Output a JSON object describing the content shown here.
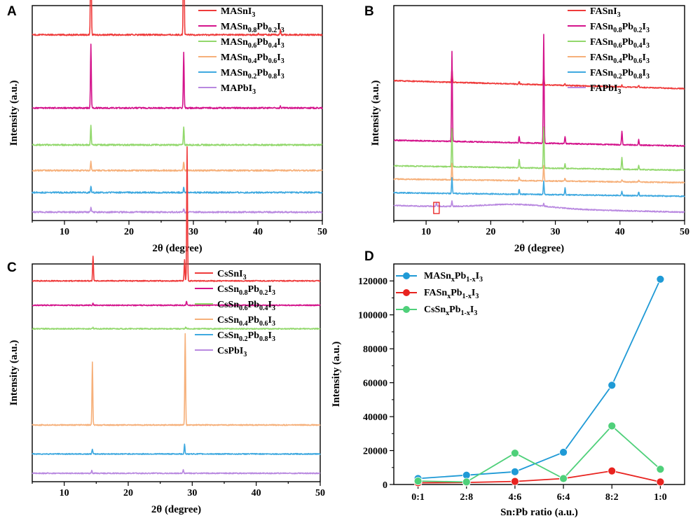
{
  "chart_data": [
    {
      "panel": "A",
      "type": "line",
      "title": "",
      "xlabel": "2θ (degree)",
      "ylabel": "Intensity (a.u.)",
      "xlim": [
        5,
        50
      ],
      "xticks": [
        "10",
        "20",
        "30",
        "40",
        "50"
      ],
      "grid": false,
      "legend": "top-right",
      "series": [
        {
          "name": "MASnI",
          "sub": "3",
          "color": "#ef3b3b",
          "baseline": 1.0,
          "peaks": [
            {
              "x": 14.1,
              "h": 20.8
            },
            {
              "x": 28.5,
              "h": 26.4
            },
            {
              "x": 40.1,
              "h": 0.3
            },
            {
              "x": 43.5,
              "h": 0.8
            }
          ]
        },
        {
          "name": "MASn",
          "sub": "0.8",
          "mid": "Pb",
          "sub2": "0.2",
          "end": "I",
          "sub3": "3",
          "color": "#d4148c",
          "baseline": 1.0,
          "peaks": [
            {
              "x": 14.1,
              "h": 10.6
            },
            {
              "x": 28.5,
              "h": 9.3
            },
            {
              "x": 43.5,
              "h": 0.3
            }
          ]
        },
        {
          "name": "MASn",
          "sub": "0.6",
          "mid": "Pb",
          "sub2": "0.4",
          "end": "I",
          "sub3": "3",
          "color": "#92d86c",
          "baseline": 1.0,
          "peaks": [
            {
              "x": 14.1,
              "h": 3.2
            },
            {
              "x": 28.5,
              "h": 3.1
            }
          ]
        },
        {
          "name": "MASn",
          "sub": "0.4",
          "mid": "Pb",
          "sub2": "0.6",
          "end": "I",
          "sub3": "3",
          "color": "#f6b07a",
          "baseline": 1.0,
          "peaks": [
            {
              "x": 14.1,
              "h": 1.5
            },
            {
              "x": 28.5,
              "h": 1.4
            }
          ]
        },
        {
          "name": "MASn",
          "sub": "0.2",
          "mid": "Pb",
          "sub2": "0.8",
          "end": "I",
          "sub3": "3",
          "color": "#3fa9e0",
          "baseline": 1.0,
          "peaks": [
            {
              "x": 14.1,
              "h": 1.0
            },
            {
              "x": 28.5,
              "h": 0.8
            }
          ]
        },
        {
          "name": "MAPbI",
          "sub": "3",
          "color": "#b989e0",
          "baseline": 1.0,
          "peaks": [
            {
              "x": 14.1,
              "h": 0.8
            },
            {
              "x": 28.5,
              "h": 0.6
            }
          ]
        }
      ],
      "offsets": [
        29.8,
        17.5,
        11.3,
        7.0,
        3.3,
        0.0
      ]
    },
    {
      "panel": "B",
      "type": "line",
      "title": "",
      "xlabel": "2θ (degree)",
      "ylabel": "Intensity (a.u.)",
      "xlim": [
        5,
        50
      ],
      "xticks": [
        "10",
        "20",
        "30",
        "40",
        "50"
      ],
      "grid": false,
      "legend": "top-right",
      "series": [
        {
          "name": "FASnI",
          "sub": "3",
          "color": "#ef3b3b",
          "baseline": 1.0,
          "peaks": [
            {
              "x": 14.0,
              "h": 3.1
            },
            {
              "x": 24.4,
              "h": 0.6
            },
            {
              "x": 28.2,
              "h": 2.6
            },
            {
              "x": 31.5,
              "h": 0.5
            },
            {
              "x": 40.3,
              "h": 0.4
            },
            {
              "x": 42.9,
              "h": 0.4
            }
          ]
        },
        {
          "name": "FASn",
          "sub": "0.8",
          "mid": "Pb",
          "sub2": "0.2",
          "end": "I",
          "sub3": "3",
          "color": "#d4148c",
          "baseline": 1.0,
          "peaks": [
            {
              "x": 14.0,
              "h": 20.4
            },
            {
              "x": 24.4,
              "h": 1.5
            },
            {
              "x": 28.2,
              "h": 24.7
            },
            {
              "x": 31.5,
              "h": 1.6
            },
            {
              "x": 40.3,
              "h": 3.1
            },
            {
              "x": 42.9,
              "h": 1.2
            }
          ]
        },
        {
          "name": "FASn",
          "sub": "0.6",
          "mid": "Pb",
          "sub2": "0.4",
          "end": "I",
          "sub3": "3",
          "color": "#92d86c",
          "baseline": 1.0,
          "peaks": [
            {
              "x": 14.0,
              "h": 8.6
            },
            {
              "x": 24.4,
              "h": 2.0
            },
            {
              "x": 28.2,
              "h": 9.4
            },
            {
              "x": 31.5,
              "h": 1.0
            },
            {
              "x": 40.3,
              "h": 2.6
            },
            {
              "x": 42.9,
              "h": 0.9
            }
          ]
        },
        {
          "name": "FASn",
          "sub": "0.4",
          "mid": "Pb",
          "sub2": "0.6",
          "end": "I",
          "sub3": "3",
          "color": "#f6b07a",
          "baseline": 1.0,
          "peaks": [
            {
              "x": 14.0,
              "h": 3.8
            },
            {
              "x": 24.4,
              "h": 0.8
            },
            {
              "x": 28.2,
              "h": 3.6
            },
            {
              "x": 31.5,
              "h": 0.7
            },
            {
              "x": 40.3,
              "h": 0.5
            },
            {
              "x": 42.9,
              "h": 0.4
            }
          ]
        },
        {
          "name": "FASn",
          "sub": "0.2",
          "mid": "Pb",
          "sub2": "0.8",
          "end": "I",
          "sub3": "3",
          "color": "#3fa9e0",
          "baseline": 1.0,
          "peaks": [
            {
              "x": 14.0,
              "h": 3.6
            },
            {
              "x": 24.4,
              "h": 1.2
            },
            {
              "x": 28.2,
              "h": 3.0
            },
            {
              "x": 31.5,
              "h": 1.6
            },
            {
              "x": 40.3,
              "h": 0.9
            },
            {
              "x": 42.9,
              "h": 0.8
            }
          ]
        },
        {
          "name": "FAPbI",
          "sub": "3",
          "color": "#b989e0",
          "baseline": 1.0,
          "peaks": [
            {
              "x": 11.6,
              "h": 0.8
            },
            {
              "x": 14.0,
              "h": 1.2
            },
            {
              "x": 28.2,
              "h": 0.6
            }
          ]
        }
      ],
      "offsets": [
        28.0,
        15.0,
        9.5,
        6.7,
        3.6,
        0.0
      ],
      "drift": [
        1.8,
        1.3,
        1.0,
        0.8,
        0.8,
        1.5
      ],
      "annotation": {
        "marker": "red box",
        "x": 11.6
      }
    },
    {
      "panel": "C",
      "type": "line",
      "title": "",
      "xlabel": "2θ (degree)",
      "ylabel": "Intensity (a.u.)",
      "xlim": [
        5,
        50
      ],
      "xticks": [
        "10",
        "20",
        "30",
        "40",
        "50"
      ],
      "grid": false,
      "legend": "top-right",
      "series": [
        {
          "name": "CsSnI",
          "sub": "3",
          "color": "#ef3b3b",
          "baseline": 1.0,
          "peaks": [
            {
              "x": 14.5,
              "h": 6.0
            },
            {
              "x": 28.8,
              "h": 5.0
            },
            {
              "x": 29.2,
              "h": 32.0
            }
          ]
        },
        {
          "name": "CsSn",
          "sub": "0.8",
          "mid": "Pb",
          "sub2": "0.2",
          "end": "I",
          "sub3": "3",
          "color": "#d4148c",
          "baseline": 1.0,
          "peaks": [
            {
              "x": 14.5,
              "h": 0.4
            },
            {
              "x": 29.1,
              "h": 1.0
            }
          ]
        },
        {
          "name": "CsSn",
          "sub": "0.6",
          "mid": "Pb",
          "sub2": "0.4",
          "end": "I",
          "sub3": "3",
          "color": "#92d86c",
          "baseline": 1.0,
          "peaks": [
            {
              "x": 14.5,
              "h": 0.3
            },
            {
              "x": 29.0,
              "h": 0.4
            }
          ]
        },
        {
          "name": "CsSn",
          "sub": "0.4",
          "mid": "Pb",
          "sub2": "0.6",
          "end": "I",
          "sub3": "3",
          "color": "#f6b07a",
          "baseline": 1.0,
          "peaks": [
            {
              "x": 14.4,
              "h": 14.9
            },
            {
              "x": 28.9,
              "h": 21.8
            }
          ]
        },
        {
          "name": "CsSn",
          "sub": "0.2",
          "mid": "Pb",
          "sub2": "0.8",
          "end": "I",
          "sub3": "3",
          "color": "#3fa9e0",
          "baseline": 1.0,
          "peaks": [
            {
              "x": 14.4,
              "h": 1.2
            },
            {
              "x": 28.8,
              "h": 2.3
            }
          ]
        },
        {
          "name": "CsPbI",
          "sub": "3",
          "color": "#b989e0",
          "baseline": 1.0,
          "peaks": [
            {
              "x": 14.3,
              "h": 0.6
            },
            {
              "x": 28.6,
              "h": 0.8
            }
          ]
        }
      ],
      "offsets": [
        45.8,
        40.0,
        34.4,
        11.5,
        4.6,
        0.0
      ]
    },
    {
      "panel": "D",
      "type": "line",
      "title": "",
      "xlabel": "Sn:Pb ratio (a.u.)",
      "ylabel": "Intensity (a.u.)",
      "categories": [
        "0:1",
        "2:8",
        "4:6",
        "6:4",
        "8:2",
        "1:0"
      ],
      "ylim": [
        0,
        130000
      ],
      "yticks": [
        "0",
        "20000",
        "40000",
        "60000",
        "80000",
        "100000",
        "120000"
      ],
      "grid": false,
      "legend": "top-left",
      "series": [
        {
          "name": "MASn",
          "sub": "x",
          "mid": "Pb",
          "sub2": "1-x",
          "end": "I",
          "sub3": "3",
          "color": "#1f9ad6",
          "values": [
            3500,
            5500,
            7500,
            19000,
            58500,
            121000
          ]
        },
        {
          "name": "FASn",
          "sub": "x",
          "mid": "Pb",
          "sub2": "1-x",
          "end": "I",
          "sub3": "3",
          "color": "#e8231f",
          "values": [
            1000,
            1200,
            1800,
            3500,
            8000,
            1500
          ]
        },
        {
          "name": "CsSn",
          "sub": "x",
          "mid": "Pb",
          "sub2": "1-x",
          "end": "I",
          "sub3": "3",
          "color": "#4fd07a",
          "values": [
            2000,
            1500,
            18500,
            3500,
            34500,
            9000
          ]
        }
      ]
    }
  ]
}
